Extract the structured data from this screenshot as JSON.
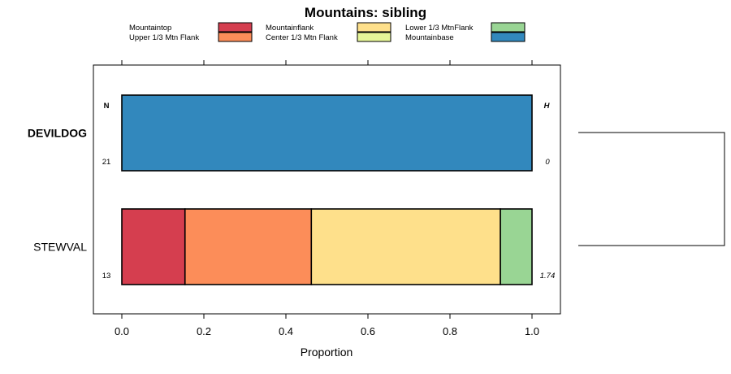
{
  "chart_data": {
    "type": "bar",
    "orientation": "horizontal",
    "stacked": true,
    "title": "Mountains: sibling",
    "xlabel": "Proportion",
    "ylabel": "",
    "xlim": [
      -0.07,
      1.07
    ],
    "x_ticks": [
      0.0,
      0.2,
      0.4,
      0.6,
      0.8,
      1.0
    ],
    "x_tick_labels": [
      "0.0",
      "0.2",
      "0.4",
      "0.6",
      "0.8",
      "1.0"
    ],
    "left_header": "N",
    "right_header": "H",
    "legend": [
      {
        "name": "Mountaintop",
        "color": "#d53e4f"
      },
      {
        "name": "Upper 1/3 Mtn Flank",
        "color": "#fc8d59"
      },
      {
        "name": "Mountainflank",
        "color": "#fee08b"
      },
      {
        "name": "Center 1/3 Mtn Flank",
        "color": "#e6f598"
      },
      {
        "name": "Lower 1/3 MtnFlank",
        "color": "#99d594"
      },
      {
        "name": "Mountainbase",
        "color": "#3288bd"
      }
    ],
    "categories": [
      {
        "name": "DEVILDOG",
        "bold": true,
        "n": "21",
        "h": "0",
        "segments": [
          {
            "name": "Mountainbase",
            "value": 1.0
          }
        ]
      },
      {
        "name": "STEWVAL",
        "bold": false,
        "n": "13",
        "h": "1.74",
        "segments": [
          {
            "name": "Mountaintop",
            "value": 0.154
          },
          {
            "name": "Upper 1/3 Mtn Flank",
            "value": 0.308
          },
          {
            "name": "Mountainflank",
            "value": 0.461
          },
          {
            "name": "Lower 1/3 MtnFlank",
            "value": 0.077
          }
        ]
      }
    ]
  }
}
